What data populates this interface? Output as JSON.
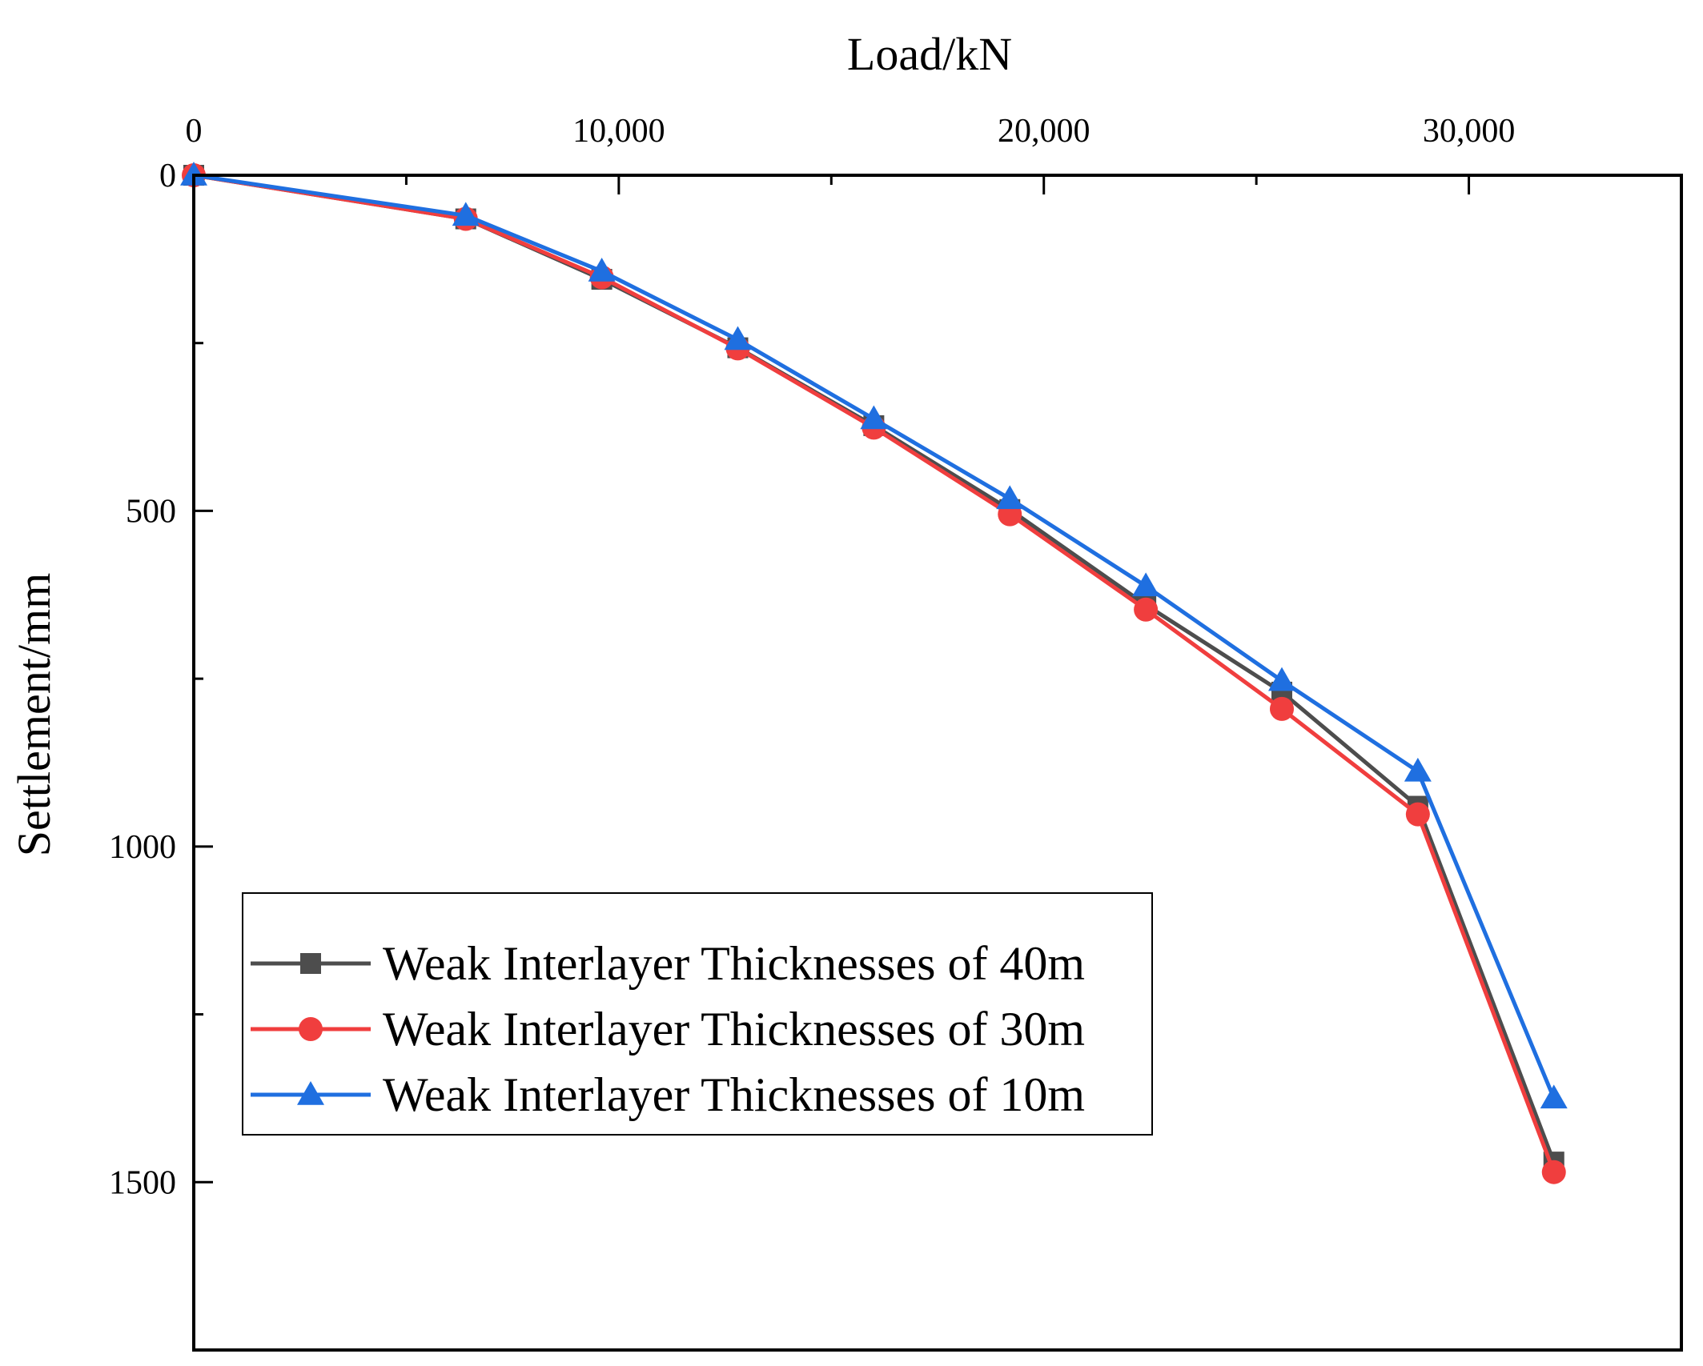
{
  "chart_data": {
    "type": "line",
    "title": "",
    "xlabel": "Load/kN",
    "ylabel": "Settlement/mm",
    "xlim": [
      0,
      35000
    ],
    "ylim": [
      0,
      1750
    ],
    "y_inverted": true,
    "x_axis_position": "top",
    "xticks": [
      0,
      10000,
      20000,
      30000
    ],
    "xtick_labels": [
      "0",
      "10,000",
      "20,000",
      "30,000"
    ],
    "yticks": [
      0,
      500,
      1000,
      1500
    ],
    "ytick_labels": [
      "0",
      "500",
      "1000",
      "1500"
    ],
    "grid": false,
    "legend_position": "bottom-left",
    "series": [
      {
        "name": "Weak Interlayer Thicknesses of 40m",
        "color": "#4d4d4d",
        "marker": "square",
        "x": [
          0,
          6400,
          9600,
          12800,
          16000,
          19200,
          22400,
          25600,
          28800,
          32000
        ],
        "y": [
          0,
          65,
          155,
          257,
          373,
          498,
          640,
          770,
          940,
          1470
        ]
      },
      {
        "name": "Weak Interlayer Thicknesses of 30m",
        "color": "#f03e3e",
        "marker": "circle",
        "x": [
          0,
          6400,
          9600,
          12800,
          16000,
          19200,
          22400,
          25600,
          28800,
          32000
        ],
        "y": [
          0,
          65,
          152,
          258,
          376,
          505,
          647,
          795,
          952,
          1485
        ]
      },
      {
        "name": "Weak Interlayer Thicknesses of 10m",
        "color": "#1f6fe0",
        "marker": "triangle",
        "x": [
          0,
          6400,
          9600,
          12800,
          16000,
          19200,
          22400,
          25600,
          28800,
          32000
        ],
        "y": [
          0,
          60,
          143,
          245,
          363,
          482,
          612,
          753,
          888,
          1375
        ]
      }
    ]
  }
}
